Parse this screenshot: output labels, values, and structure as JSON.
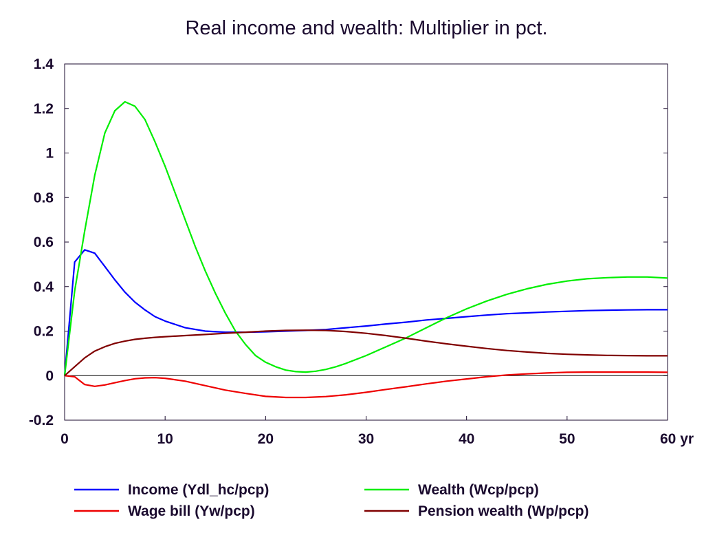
{
  "chart_data": {
    "type": "line",
    "title": "Real income and wealth: Multiplier in pct.",
    "xlim": [
      0,
      60
    ],
    "ylim": [
      -0.2,
      1.4
    ],
    "x_ticks": [
      0,
      10,
      20,
      30,
      40,
      50,
      60
    ],
    "x_tick_labels": [
      "0",
      "10",
      "20",
      "30",
      "40",
      "50",
      "60 yr"
    ],
    "y_ticks": [
      -0.2,
      0,
      0.2,
      0.4,
      0.6,
      0.8,
      1,
      1.2,
      1.4
    ],
    "y_tick_labels": [
      "-0.2",
      "0",
      "0.2",
      "0.4",
      "0.6",
      "0.8",
      "1",
      "1.2",
      "1.4"
    ],
    "zero_line": true,
    "grid": false,
    "legend_position": "bottom",
    "series": [
      {
        "name": "Income (Ydl_hc/pcp)",
        "color": "#0000ff",
        "x": [
          0,
          1,
          2,
          3,
          4,
          5,
          6,
          7,
          8,
          9,
          10,
          12,
          14,
          16,
          18,
          20,
          22,
          24,
          26,
          28,
          30,
          32,
          34,
          36,
          38,
          40,
          42,
          44,
          46,
          48,
          50,
          52,
          54,
          56,
          58,
          60
        ],
        "y": [
          0,
          0.51,
          0.565,
          0.55,
          0.49,
          0.43,
          0.375,
          0.33,
          0.295,
          0.265,
          0.245,
          0.215,
          0.2,
          0.195,
          0.195,
          0.197,
          0.2,
          0.203,
          0.207,
          0.215,
          0.223,
          0.232,
          0.24,
          0.25,
          0.257,
          0.265,
          0.272,
          0.278,
          0.282,
          0.286,
          0.289,
          0.292,
          0.294,
          0.295,
          0.296,
          0.296
        ]
      },
      {
        "name": "Wealth (Wcp/pcp)",
        "color": "#00ee00",
        "x": [
          0,
          1,
          2,
          3,
          4,
          5,
          6,
          7,
          8,
          9,
          10,
          11,
          12,
          13,
          14,
          15,
          16,
          17,
          18,
          19,
          20,
          21,
          22,
          23,
          24,
          25,
          26,
          27,
          28,
          30,
          32,
          34,
          36,
          38,
          40,
          42,
          44,
          46,
          48,
          50,
          52,
          54,
          56,
          58,
          60
        ],
        "y": [
          0,
          0.38,
          0.65,
          0.9,
          1.09,
          1.19,
          1.23,
          1.21,
          1.15,
          1.05,
          0.94,
          0.82,
          0.7,
          0.58,
          0.47,
          0.37,
          0.28,
          0.2,
          0.14,
          0.09,
          0.06,
          0.04,
          0.025,
          0.018,
          0.016,
          0.02,
          0.028,
          0.04,
          0.055,
          0.09,
          0.13,
          0.17,
          0.215,
          0.26,
          0.3,
          0.335,
          0.365,
          0.39,
          0.41,
          0.425,
          0.435,
          0.44,
          0.443,
          0.443,
          0.438
        ]
      },
      {
        "name": "Wage bill (Yw/pcp)",
        "color": "#ee0000",
        "x": [
          0,
          1,
          2,
          3,
          4,
          5,
          6,
          7,
          8,
          9,
          10,
          12,
          14,
          16,
          18,
          20,
          22,
          24,
          26,
          28,
          30,
          32,
          34,
          36,
          38,
          40,
          42,
          44,
          46,
          48,
          50,
          52,
          54,
          56,
          58,
          60
        ],
        "y": [
          0,
          -0.005,
          -0.04,
          -0.048,
          -0.042,
          -0.032,
          -0.022,
          -0.014,
          -0.01,
          -0.009,
          -0.012,
          -0.025,
          -0.045,
          -0.065,
          -0.08,
          -0.093,
          -0.098,
          -0.098,
          -0.094,
          -0.086,
          -0.075,
          -0.062,
          -0.05,
          -0.037,
          -0.025,
          -0.015,
          -0.005,
          0.003,
          0.008,
          0.012,
          0.015,
          0.016,
          0.016,
          0.016,
          0.016,
          0.015
        ]
      },
      {
        "name": "Pension wealth (Wp/pcp)",
        "color": "#800000",
        "x": [
          0,
          1,
          2,
          3,
          4,
          5,
          6,
          7,
          8,
          9,
          10,
          12,
          14,
          16,
          18,
          20,
          22,
          24,
          26,
          28,
          30,
          32,
          34,
          36,
          38,
          40,
          42,
          44,
          46,
          48,
          50,
          52,
          54,
          56,
          58,
          60
        ],
        "y": [
          0,
          0.04,
          0.08,
          0.11,
          0.13,
          0.145,
          0.155,
          0.163,
          0.168,
          0.172,
          0.175,
          0.18,
          0.185,
          0.19,
          0.195,
          0.2,
          0.203,
          0.204,
          0.203,
          0.198,
          0.19,
          0.18,
          0.168,
          0.155,
          0.143,
          0.132,
          0.122,
          0.113,
          0.106,
          0.1,
          0.096,
          0.093,
          0.091,
          0.09,
          0.089,
          0.089
        ]
      }
    ]
  }
}
